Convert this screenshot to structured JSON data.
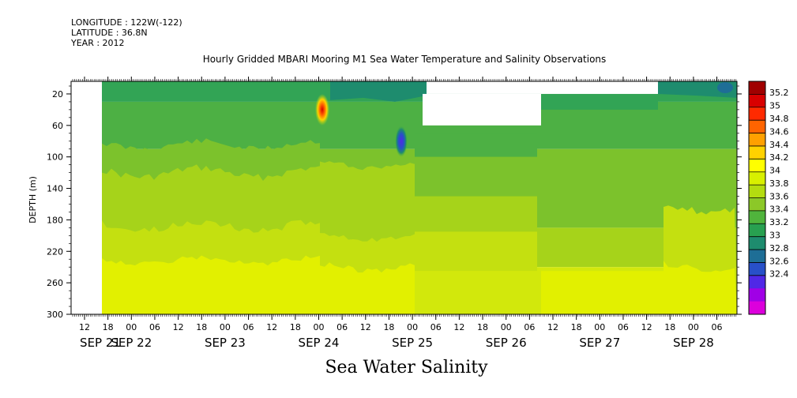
{
  "header": {
    "longitude": "LONGITUDE : 122W(-122)",
    "latitude": "LATITUDE : 36.8N",
    "year": "YEAR : 2012"
  },
  "chart_data": {
    "type": "heatmap",
    "title": "Hourly Gridded MBARI Mooring M1 Sea Water Temperature and Salinity Observations",
    "xlabel": "",
    "ylabel": "DEPTH (m)",
    "bottom_title": "Sea Water Salinity",
    "x_hour_ticks": [
      "12",
      "18",
      "00",
      "06",
      "12",
      "18",
      "00",
      "06",
      "12",
      "18",
      "00",
      "06",
      "12",
      "18",
      "00",
      "06",
      "12",
      "18",
      "00",
      "06",
      "12",
      "18",
      "00",
      "06",
      "12",
      "18",
      "00",
      "06"
    ],
    "x_date_labels": [
      "SEP 21",
      "SEP 22",
      "SEP 23",
      "SEP 24",
      "SEP 25",
      "SEP 26",
      "SEP 27",
      "SEP 28"
    ],
    "y_ticks": [
      20,
      60,
      100,
      140,
      180,
      220,
      260,
      300
    ],
    "ylim": [
      300,
      4
    ],
    "colorbar": {
      "levels": [
        "35.2",
        "35",
        "34.8",
        "34.6",
        "34.4",
        "34.2",
        "34",
        "33.8",
        "33.6",
        "33.4",
        "33.2",
        "33",
        "32.8",
        "32.6",
        "32.4"
      ],
      "colors": [
        "#a00000",
        "#d80000",
        "#ff2a00",
        "#ff6400",
        "#ffa000",
        "#ffd200",
        "#ffff00",
        "#d8f000",
        "#b4dc10",
        "#8cc828",
        "#50b43c",
        "#28a050",
        "#1e8c6e",
        "#1e6e96",
        "#2850c8",
        "#5028e6",
        "#a000e6",
        "#dc00dc"
      ]
    },
    "depth_bands": [
      {
        "depth_top": 4,
        "depth_bottom": 30,
        "salinity_range": "33.2-33.6"
      },
      {
        "depth_top": 30,
        "depth_bottom": 90,
        "salinity_range": "33.4-33.6"
      },
      {
        "depth_top": 90,
        "depth_bottom": 190,
        "salinity_range": "33.6-33.8"
      },
      {
        "depth_top": 190,
        "depth_bottom": 240,
        "salinity_range": "33.8-34.0"
      },
      {
        "depth_top": 240,
        "depth_bottom": 300,
        "salinity_range": "34.0-34.2"
      }
    ],
    "anomalies": [
      {
        "time": "SEP 24 00",
        "depth": 40,
        "salinity": 35.0
      },
      {
        "time": "SEP 24 21",
        "depth": 80,
        "salinity": 33.0
      }
    ]
  }
}
